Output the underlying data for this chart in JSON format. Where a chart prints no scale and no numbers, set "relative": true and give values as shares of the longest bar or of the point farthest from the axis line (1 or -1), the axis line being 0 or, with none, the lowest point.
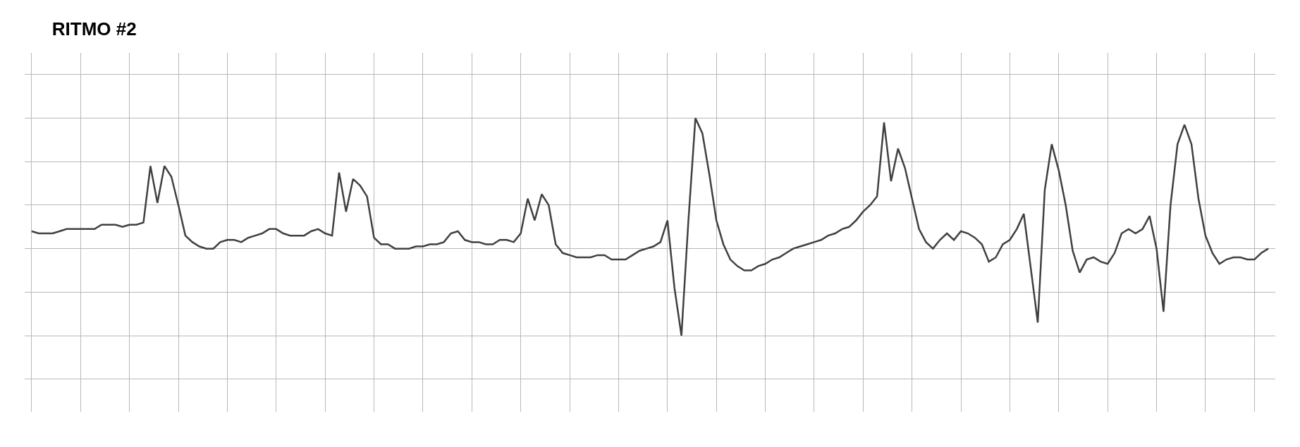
{
  "chart_data": {
    "type": "line",
    "title": "RITMO #2",
    "relative": true,
    "grid": true,
    "tick_labels": false,
    "marker": "none",
    "line_style": "solid",
    "categories": [
      null,
      null,
      null,
      null,
      null,
      null,
      null,
      null,
      null,
      null,
      null,
      null,
      null,
      null,
      null,
      null,
      null,
      null,
      null,
      null,
      null,
      null,
      null,
      null,
      null,
      null,
      null,
      null,
      null,
      null,
      null,
      null,
      null,
      null,
      null,
      null,
      null,
      null,
      null,
      null,
      null,
      null,
      null,
      null,
      null,
      null,
      null,
      null,
      null,
      null,
      null,
      null,
      null,
      null,
      null,
      null,
      null,
      null,
      null,
      null,
      null,
      null,
      null,
      null,
      null,
      null,
      null,
      null,
      null,
      null,
      null,
      null,
      null,
      null,
      null,
      null,
      null,
      null,
      null,
      null,
      null,
      null,
      null,
      null,
      null,
      null,
      null,
      null,
      null,
      null,
      null,
      null,
      null,
      null,
      null,
      null,
      null,
      null,
      null,
      null,
      null,
      null,
      null,
      null,
      null,
      null,
      null,
      null,
      null,
      null,
      null,
      null,
      null,
      null,
      null,
      null,
      null,
      null,
      null,
      null,
      null,
      null,
      null,
      null,
      null,
      null,
      null,
      null,
      null,
      null,
      null,
      null,
      null,
      null,
      null,
      null,
      null,
      null,
      null,
      null,
      null,
      null,
      null,
      null,
      null,
      null,
      null,
      null,
      null,
      null,
      null,
      null,
      null,
      null,
      null,
      null,
      null,
      null,
      null,
      null,
      null,
      null,
      null,
      null,
      null,
      null,
      null,
      null,
      null,
      null,
      null,
      null,
      null,
      null,
      null,
      null,
      null,
      null
    ],
    "series": [
      {
        "color": "#404040",
        "values": [
          0.48,
          0.47,
          0.47,
          0.47,
          0.48,
          0.49,
          0.49,
          0.49,
          0.49,
          0.49,
          0.51,
          0.51,
          0.51,
          0.5,
          0.51,
          0.51,
          0.52,
          0.78,
          0.61,
          0.78,
          0.73,
          0.6,
          0.46,
          0.43,
          0.41,
          0.4,
          0.4,
          0.43,
          0.44,
          0.44,
          0.43,
          0.45,
          0.46,
          0.47,
          0.49,
          0.49,
          0.47,
          0.46,
          0.46,
          0.46,
          0.48,
          0.49,
          0.47,
          0.46,
          0.75,
          0.57,
          0.72,
          0.69,
          0.64,
          0.45,
          0.42,
          0.42,
          0.4,
          0.4,
          0.4,
          0.41,
          0.41,
          0.42,
          0.42,
          0.43,
          0.47,
          0.48,
          0.44,
          0.43,
          0.43,
          0.42,
          0.42,
          0.44,
          0.44,
          0.43,
          0.47,
          0.63,
          0.53,
          0.65,
          0.6,
          0.42,
          0.38,
          0.37,
          0.36,
          0.36,
          0.36,
          0.37,
          0.37,
          0.35,
          0.35,
          0.35,
          0.37,
          0.39,
          0.4,
          0.41,
          0.43,
          0.53,
          0.22,
          0.0,
          0.53,
          1.0,
          0.93,
          0.74,
          0.53,
          0.42,
          0.35,
          0.32,
          0.3,
          0.3,
          0.32,
          0.33,
          0.35,
          0.36,
          0.38,
          0.4,
          0.41,
          0.42,
          0.43,
          0.44,
          0.46,
          0.47,
          0.49,
          0.5,
          0.53,
          0.57,
          0.6,
          0.64,
          0.98,
          0.71,
          0.86,
          0.77,
          0.63,
          0.49,
          0.43,
          0.4,
          0.44,
          0.47,
          0.44,
          0.48,
          0.47,
          0.45,
          0.42,
          0.34,
          0.36,
          0.42,
          0.44,
          0.49,
          0.56,
          0.31,
          0.06,
          0.67,
          0.88,
          0.76,
          0.6,
          0.39,
          0.29,
          0.35,
          0.36,
          0.34,
          0.33,
          0.38,
          0.47,
          0.49,
          0.47,
          0.49,
          0.55,
          0.4,
          0.11,
          0.6,
          0.88,
          0.97,
          0.88,
          0.63,
          0.46,
          0.38,
          0.33,
          0.35,
          0.36,
          0.36,
          0.35,
          0.35,
          0.38,
          0.4
        ]
      }
    ]
  }
}
